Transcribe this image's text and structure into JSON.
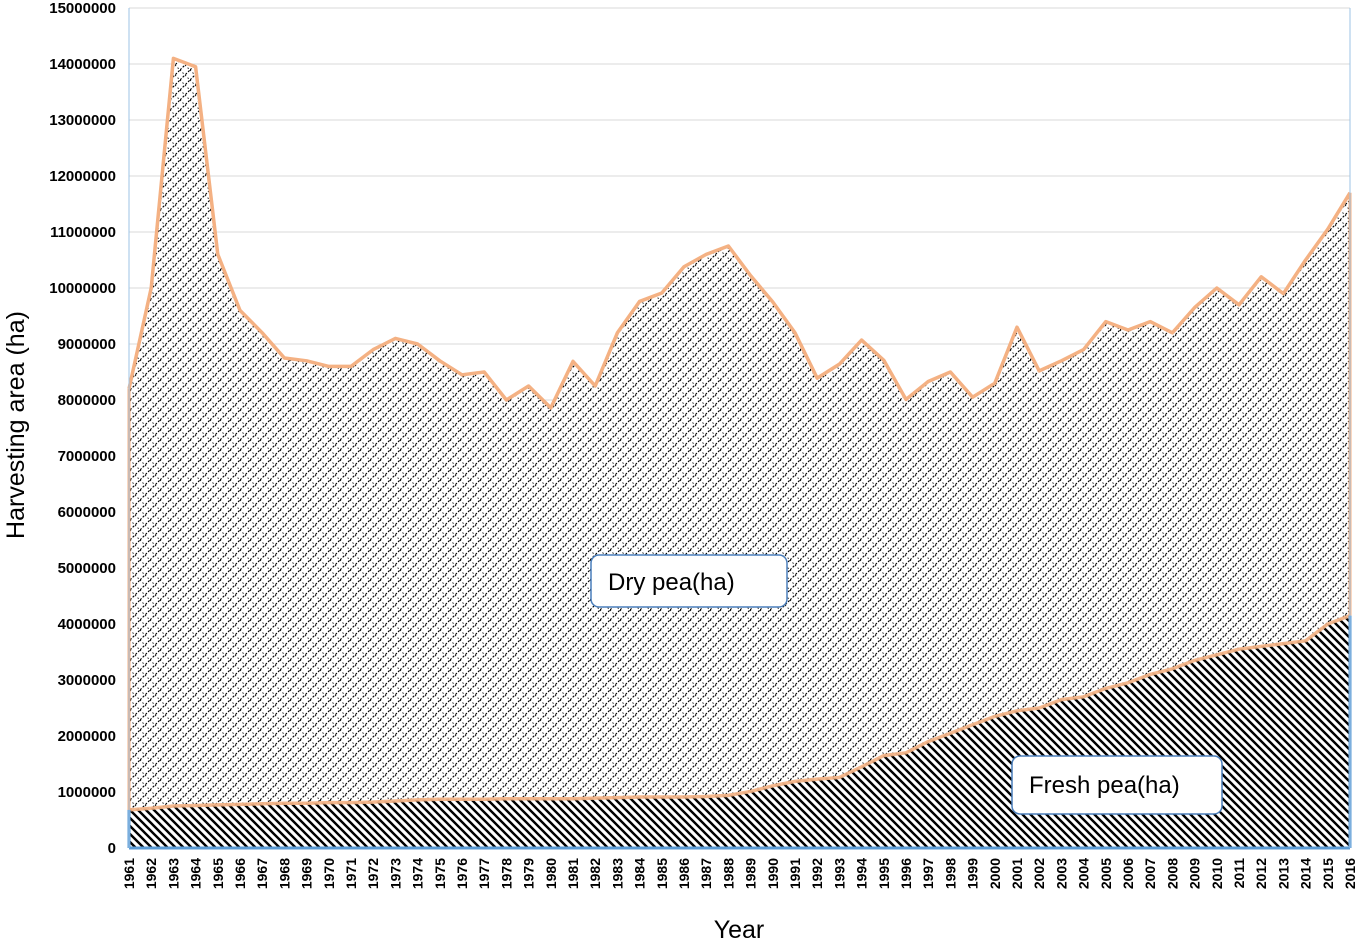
{
  "chart_data": {
    "type": "area",
    "stacked": true,
    "xlabel": "Year",
    "ylabel": "Harvesting area (ha)",
    "ylim": [
      0,
      15000000
    ],
    "yticks": [
      0,
      1000000,
      2000000,
      3000000,
      4000000,
      5000000,
      6000000,
      7000000,
      8000000,
      9000000,
      10000000,
      11000000,
      12000000,
      13000000,
      14000000,
      15000000
    ],
    "grid": "horizontal",
    "x": [
      1961,
      1962,
      1963,
      1964,
      1965,
      1966,
      1967,
      1968,
      1969,
      1970,
      1971,
      1972,
      1973,
      1974,
      1975,
      1976,
      1977,
      1978,
      1979,
      1980,
      1981,
      1982,
      1983,
      1984,
      1985,
      1986,
      1987,
      1988,
      1989,
      1990,
      1991,
      1992,
      1993,
      1994,
      1995,
      1996,
      1997,
      1998,
      1999,
      2000,
      2001,
      2002,
      2003,
      2004,
      2005,
      2006,
      2007,
      2008,
      2009,
      2010,
      2011,
      2012,
      2013,
      2014,
      2015,
      2016
    ],
    "series": [
      {
        "name": "Fresh pea(ha)",
        "color": "#5b9bd5",
        "values": [
          680000,
          710000,
          750000,
          760000,
          770000,
          780000,
          790000,
          800000,
          800000,
          810000,
          810000,
          820000,
          840000,
          860000,
          870000,
          870000,
          870000,
          880000,
          880000,
          880000,
          880000,
          890000,
          900000,
          910000,
          910000,
          910000,
          920000,
          940000,
          1010000,
          1110000,
          1190000,
          1230000,
          1260000,
          1450000,
          1650000,
          1700000,
          1900000,
          2050000,
          2200000,
          2350000,
          2450000,
          2500000,
          2650000,
          2700000,
          2850000,
          2950000,
          3100000,
          3200000,
          3350000,
          3450000,
          3550000,
          3600000,
          3650000,
          3700000,
          4000000,
          4150000
        ]
      },
      {
        "name": "Dry pea(ha)",
        "color": "#f4b183",
        "values": [
          7520000,
          9290000,
          13350000,
          13190000,
          9830000,
          8820000,
          8410000,
          7950000,
          7900000,
          7790000,
          7790000,
          8080000,
          8260000,
          8140000,
          7830000,
          7580000,
          7630000,
          7120000,
          7370000,
          6980000,
          7810000,
          7360000,
          8300000,
          8850000,
          9000000,
          9470000,
          9680000,
          9810000,
          9210000,
          8640000,
          8010000,
          7160000,
          7380000,
          7620000,
          7060000,
          6310000,
          6430000,
          6450000,
          5850000,
          5950000,
          6850000,
          6020000,
          6050000,
          6200000,
          6550000,
          6300000,
          6300000,
          6000000,
          6300000,
          6550000,
          6150000,
          6600000,
          6250000,
          6800000,
          7050000,
          7550000
        ]
      }
    ],
    "annotations": [
      "Dry pea(ha)",
      "Fresh pea(ha)"
    ]
  }
}
